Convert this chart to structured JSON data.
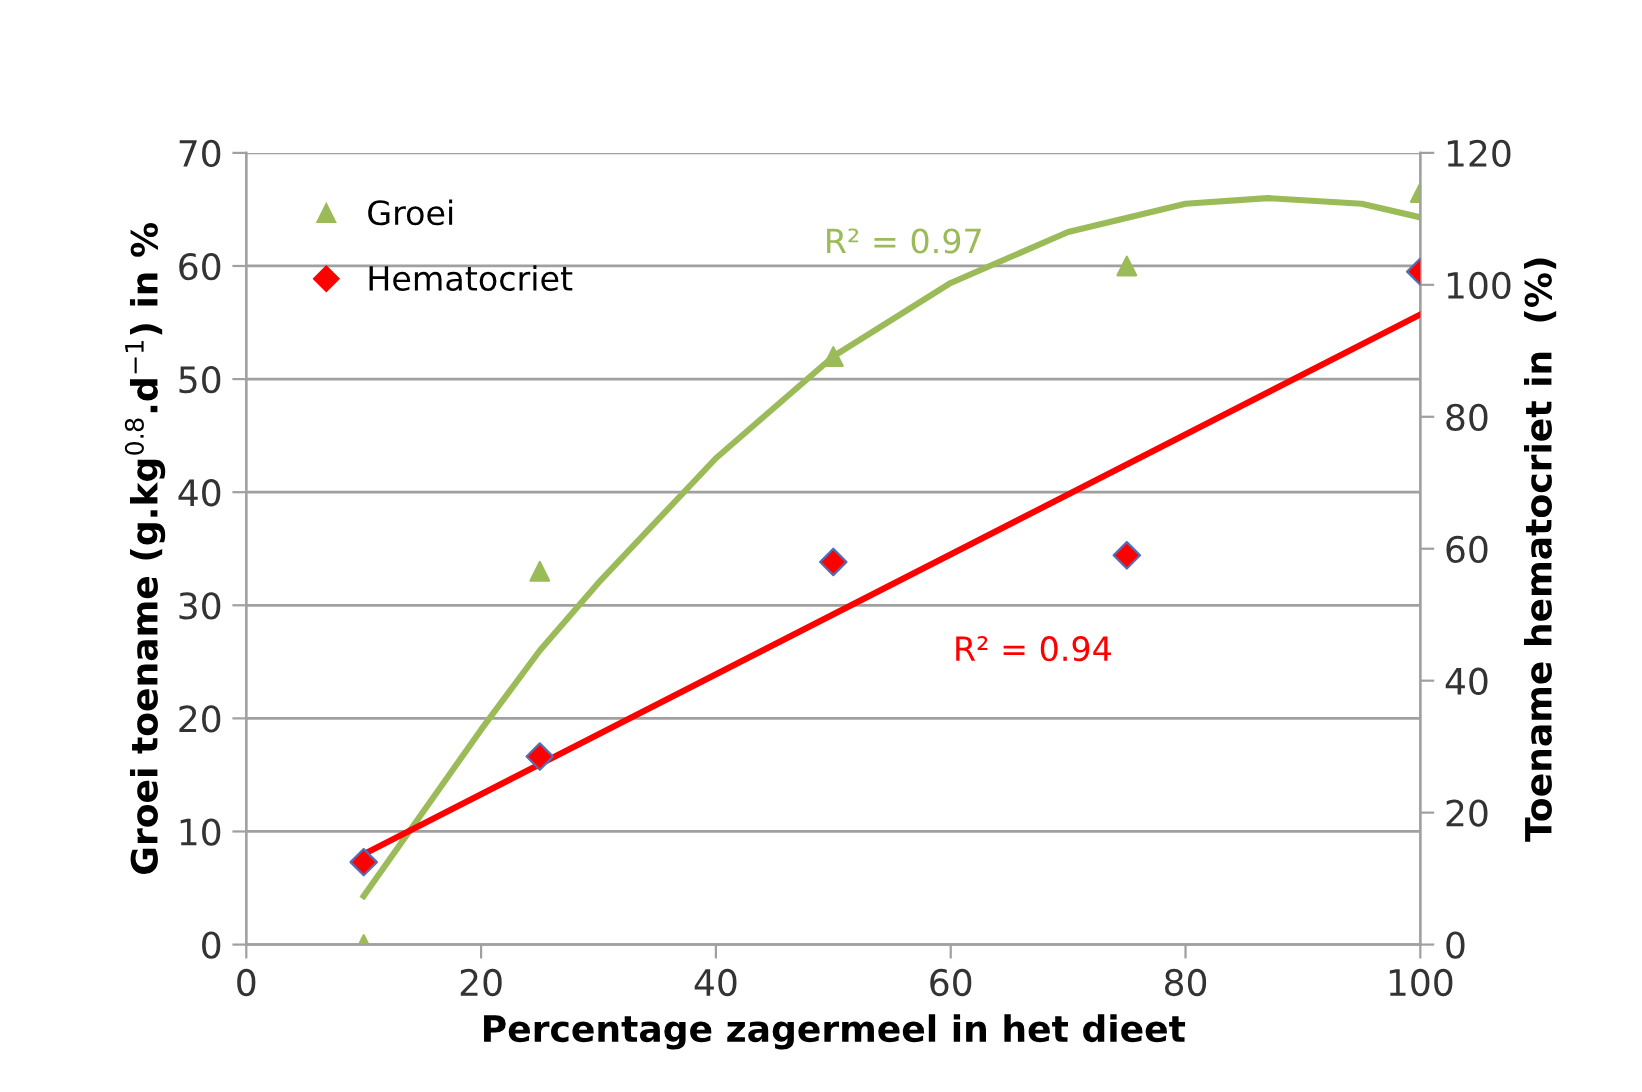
{
  "chart_data": {
    "type": "scatter",
    "xlabel": "Percentage zagermeel in het dieet",
    "ylabel": "Groei toename (g.kg$^{0.8}$.d$^{−1}$) in %",
    "y2label": "Toename hematocriet in  (%)",
    "xlim": [
      0,
      100
    ],
    "xticks": [
      0,
      20,
      40,
      60,
      80,
      100
    ],
    "ylim": [
      0,
      70
    ],
    "yticks": [
      0,
      10,
      20,
      30,
      40,
      50,
      60,
      70
    ],
    "y2lim": [
      0,
      120
    ],
    "y2ticks": [
      0,
      20,
      40,
      60,
      80,
      100,
      120
    ],
    "grid": "y",
    "legend": "top left",
    "series": [
      {
        "name": "Groei",
        "marker": "triangle",
        "color": "#9bbb59",
        "x": [
          10,
          25,
          50,
          75,
          100
        ],
        "values": [
          0,
          33,
          52,
          60,
          66.5
        ]
      },
      {
        "name": "Hematocriet",
        "marker": "diamond",
        "color": "#ff0000",
        "axis": "y2",
        "x": [
          10,
          25,
          50,
          75,
          100
        ],
        "values": [
          12.5,
          28.5,
          58,
          59,
          102
        ]
      },
      {
        "type": "line",
        "marker": "none",
        "color": "#9bbb59",
        "x": [
          10,
          20,
          25,
          30,
          40,
          50,
          60,
          70,
          80,
          87,
          95,
          100
        ],
        "values": [
          4.3,
          19,
          26,
          32,
          43,
          52,
          58.5,
          63,
          65.5,
          66,
          65.5,
          64.3
        ]
      },
      {
        "type": "line",
        "marker": "none",
        "color": "#ff0000",
        "axis": "y2",
        "x": [
          10,
          100
        ],
        "values": [
          13.7,
          95.5
        ]
      }
    ],
    "annotations": [
      "R² = 0.97",
      "R² = 0.94"
    ]
  }
}
